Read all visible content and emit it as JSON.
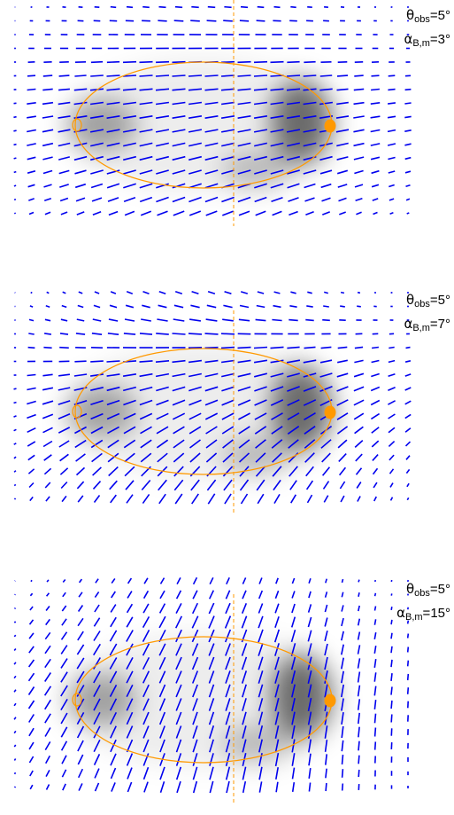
{
  "panels": [
    {
      "theta_obs": "5°",
      "alpha_Bm": "3°",
      "alpha_deg": 3
    },
    {
      "theta_obs": "5°",
      "alpha_Bm": "7°",
      "alpha_deg": 7
    },
    {
      "theta_obs": "5°",
      "alpha_Bm": "15°",
      "alpha_deg": 15
    }
  ],
  "labels": {
    "theta_symbol": "θ",
    "theta_sub": "obs",
    "alpha_symbol": "α",
    "alpha_sub": "B,m",
    "equals": "="
  },
  "colors": {
    "vectors": "#0000ee",
    "ring": "#ff9900",
    "background": "#ffffff",
    "intensity": "#000000"
  }
}
